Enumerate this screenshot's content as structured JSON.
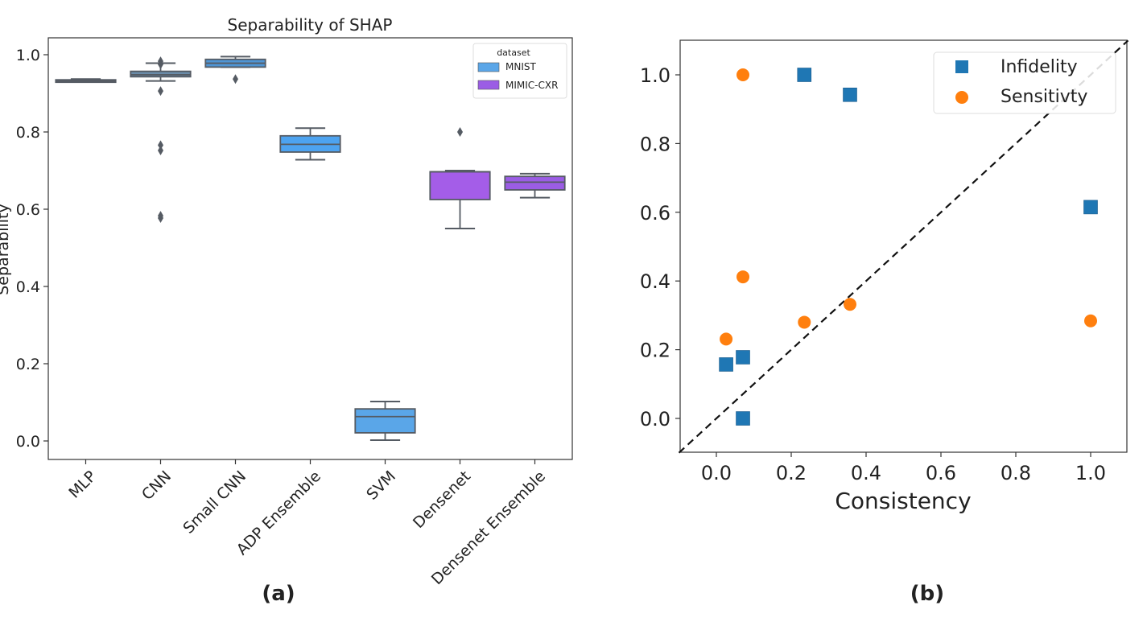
{
  "chart_data": [
    {
      "type": "box",
      "panel_label": "(a)",
      "title": "Separability of SHAP",
      "xlabel": "",
      "ylabel": "Separability",
      "ylim": [
        -0.05,
        1.04
      ],
      "yticks": [
        0.0,
        0.2,
        0.4,
        0.6,
        0.8,
        1.0
      ],
      "ytick_labels": [
        "0.0",
        "0.2",
        "0.4",
        "0.6",
        "0.8",
        "1.0"
      ],
      "grid": false,
      "legend": {
        "title": "dataset",
        "position": "top-right",
        "entries": [
          {
            "name": "MNIST",
            "color": "#5aa6e8"
          },
          {
            "name": "MIMIC-CXR",
            "color": "#9b5de5"
          }
        ]
      },
      "categories": [
        "MLP",
        "CNN",
        "Small CNN",
        "ADP Ensemble",
        "SVM",
        "Densenet",
        "Densenet Ensemble"
      ],
      "boxes": [
        {
          "category": "MLP",
          "dataset": "MNIST",
          "whisker_low": 0.93,
          "q1": 0.93,
          "median": 0.932,
          "q3": 0.935,
          "whisker_high": 0.937,
          "outliers": [],
          "color": "#6b7f90"
        },
        {
          "category": "CNN",
          "dataset": "MNIST",
          "whisker_low": 0.932,
          "q1": 0.943,
          "median": 0.948,
          "q3": 0.957,
          "whisker_high": 0.978,
          "outliers": [
            0.983,
            0.975,
            0.906,
            0.766,
            0.752,
            0.583,
            0.577
          ],
          "color": "#6a8ba8"
        },
        {
          "category": "Small CNN",
          "dataset": "MNIST",
          "whisker_low": 0.968,
          "q1": 0.968,
          "median": 0.978,
          "q3": 0.988,
          "whisker_high": 0.995,
          "outliers": [
            0.937
          ],
          "color": "#4f95d4"
        },
        {
          "category": "ADP Ensemble",
          "dataset": "MNIST",
          "whisker_low": 0.728,
          "q1": 0.748,
          "median": 0.768,
          "q3": 0.79,
          "whisker_high": 0.81,
          "outliers": [],
          "color": "#4da3f0"
        },
        {
          "category": "SVM",
          "dataset": "MNIST",
          "whisker_low": 0.002,
          "q1": 0.021,
          "median": 0.063,
          "q3": 0.083,
          "whisker_high": 0.102,
          "outliers": [],
          "color": "#5aa6e8"
        },
        {
          "category": "Densenet",
          "dataset": "MIMIC-CXR",
          "whisker_low": 0.55,
          "q1": 0.625,
          "median": 0.697,
          "q3": 0.697,
          "whisker_high": 0.7,
          "outliers": [
            0.8
          ],
          "color": "#a45de8"
        },
        {
          "category": "Densenet Ensemble",
          "dataset": "MIMIC-CXR",
          "whisker_low": 0.63,
          "q1": 0.65,
          "median": 0.67,
          "q3": 0.685,
          "whisker_high": 0.692,
          "outliers": [],
          "color": "#9b5de5"
        }
      ]
    },
    {
      "type": "scatter",
      "panel_label": "(b)",
      "title": "",
      "xlabel": "Consistency",
      "ylabel": "",
      "xlim": [
        -0.1,
        1.1
      ],
      "ylim": [
        -0.1,
        1.1
      ],
      "xticks": [
        0.0,
        0.2,
        0.4,
        0.6,
        0.8,
        1.0
      ],
      "xtick_labels": [
        "0.0",
        "0.2",
        "0.4",
        "0.6",
        "0.8",
        "1.0"
      ],
      "yticks": [
        0.0,
        0.2,
        0.4,
        0.6,
        0.8,
        1.0
      ],
      "ytick_labels": [
        "0.0",
        "0.2",
        "0.4",
        "0.6",
        "0.8",
        "1.0"
      ],
      "grid": false,
      "legend": {
        "position": "top-right"
      },
      "reference_line": {
        "style": "dashed",
        "from": [
          -0.1,
          -0.1
        ],
        "to": [
          1.1,
          1.1
        ],
        "color": "#111111"
      },
      "series": [
        {
          "name": "Infidelity",
          "marker": "square",
          "color": "#1f77b4",
          "points": [
            [
              0.235,
              1.0
            ],
            [
              0.357,
              0.942
            ],
            [
              1.0,
              0.615
            ],
            [
              0.026,
              0.157
            ],
            [
              0.071,
              0.178
            ],
            [
              0.071,
              0.0
            ]
          ]
        },
        {
          "name": "Sensitivty",
          "marker": "circle",
          "color": "#ff7f0e",
          "points": [
            [
              0.071,
              1.0
            ],
            [
              0.071,
              0.412
            ],
            [
              0.357,
              0.332
            ],
            [
              0.235,
              0.28
            ],
            [
              1.0,
              0.284
            ],
            [
              0.026,
              0.231
            ]
          ]
        }
      ]
    }
  ]
}
